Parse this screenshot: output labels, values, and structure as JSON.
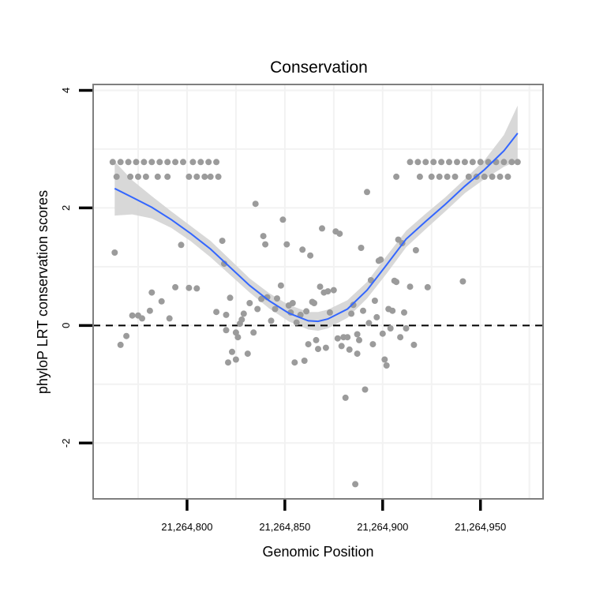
{
  "chart_data": {
    "type": "scatter",
    "title": "Conservation",
    "xlabel": "Genomic Position",
    "ylabel": "phyloP LRT conservation scores",
    "xlim": [
      21264752,
      21264982
    ],
    "ylim": [
      -2.95,
      4.1
    ],
    "x_ticks": [
      {
        "value": 21264800,
        "label": "21,264,800"
      },
      {
        "value": 21264850,
        "label": "21,264,850"
      },
      {
        "value": 21264900,
        "label": "21,264,900"
      },
      {
        "value": 21264950,
        "label": "21,264,950"
      }
    ],
    "y_ticks": [
      {
        "value": -2,
        "label": "-2"
      },
      {
        "value": 0,
        "label": "0"
      },
      {
        "value": 2,
        "label": "2"
      },
      {
        "value": 4,
        "label": "4"
      }
    ],
    "reference_line": {
      "y": 0,
      "style": "dashed"
    },
    "grid": true,
    "colors": {
      "points": "#9b9b9b",
      "smooth": "#3366ff",
      "ribbon": "#d4d4d4",
      "panel_border": "#7f7f7f",
      "grid": "#f2f2f2",
      "refline": "#000000"
    },
    "points": [
      {
        "x": 21264762,
        "y": 2.78
      },
      {
        "x": 21264766,
        "y": 2.78
      },
      {
        "x": 21264770,
        "y": 2.78
      },
      {
        "x": 21264774,
        "y": 2.78
      },
      {
        "x": 21264778,
        "y": 2.78
      },
      {
        "x": 21264782,
        "y": 2.78
      },
      {
        "x": 21264786,
        "y": 2.78
      },
      {
        "x": 21264790,
        "y": 2.78
      },
      {
        "x": 21264794,
        "y": 2.78
      },
      {
        "x": 21264798,
        "y": 2.78
      },
      {
        "x": 21264803,
        "y": 2.78
      },
      {
        "x": 21264807,
        "y": 2.78
      },
      {
        "x": 21264811,
        "y": 2.78
      },
      {
        "x": 21264815,
        "y": 2.78
      },
      {
        "x": 21264764,
        "y": 2.53
      },
      {
        "x": 21264771,
        "y": 2.53
      },
      {
        "x": 21264775,
        "y": 2.53
      },
      {
        "x": 21264779,
        "y": 2.53
      },
      {
        "x": 21264785,
        "y": 2.53
      },
      {
        "x": 21264790,
        "y": 2.53
      },
      {
        "x": 21264801,
        "y": 2.53
      },
      {
        "x": 21264805,
        "y": 2.53
      },
      {
        "x": 21264809,
        "y": 2.53
      },
      {
        "x": 21264812,
        "y": 2.53
      },
      {
        "x": 21264816,
        "y": 2.53
      },
      {
        "x": 21264763,
        "y": 1.24
      },
      {
        "x": 21264766,
        "y": -0.33
      },
      {
        "x": 21264769,
        "y": -0.18
      },
      {
        "x": 21264772,
        "y": 0.17
      },
      {
        "x": 21264775,
        "y": 0.17
      },
      {
        "x": 21264777,
        "y": 0.12
      },
      {
        "x": 21264781,
        "y": 0.25
      },
      {
        "x": 21264782,
        "y": 0.56
      },
      {
        "x": 21264787,
        "y": 0.41
      },
      {
        "x": 21264791,
        "y": 0.12
      },
      {
        "x": 21264794,
        "y": 0.65
      },
      {
        "x": 21264797,
        "y": 1.37
      },
      {
        "x": 21264801,
        "y": 0.64
      },
      {
        "x": 21264805,
        "y": 0.63
      },
      {
        "x": 21264815,
        "y": 0.23
      },
      {
        "x": 21264818,
        "y": 1.44
      },
      {
        "x": 21264819,
        "y": 1.05
      },
      {
        "x": 21264820,
        "y": -0.08
      },
      {
        "x": 21264820,
        "y": 0.18
      },
      {
        "x": 21264821,
        "y": -0.63
      },
      {
        "x": 21264822,
        "y": 0.47
      },
      {
        "x": 21264823,
        "y": -0.45
      },
      {
        "x": 21264825,
        "y": -0.12
      },
      {
        "x": 21264826,
        "y": -0.2
      },
      {
        "x": 21264825,
        "y": -0.58
      },
      {
        "x": 21264827,
        "y": 0.03
      },
      {
        "x": 21264828,
        "y": 0.1
      },
      {
        "x": 21264829,
        "y": 0.2
      },
      {
        "x": 21264831,
        "y": -0.48
      },
      {
        "x": 21264832,
        "y": 0.38
      },
      {
        "x": 21264835,
        "y": 2.07
      },
      {
        "x": 21264834,
        "y": -0.12
      },
      {
        "x": 21264836,
        "y": 0.28
      },
      {
        "x": 21264838,
        "y": 0.45
      },
      {
        "x": 21264839,
        "y": 1.52
      },
      {
        "x": 21264840,
        "y": 1.38
      },
      {
        "x": 21264841,
        "y": 0.48
      },
      {
        "x": 21264843,
        "y": 0.08
      },
      {
        "x": 21264845,
        "y": 0.28
      },
      {
        "x": 21264846,
        "y": 0.46
      },
      {
        "x": 21264848,
        "y": 0.68
      },
      {
        "x": 21264849,
        "y": 1.8
      },
      {
        "x": 21264851,
        "y": 1.38
      },
      {
        "x": 21264852,
        "y": 0.34
      },
      {
        "x": 21264853,
        "y": 0.22
      },
      {
        "x": 21264854,
        "y": 0.38
      },
      {
        "x": 21264855,
        "y": -0.63
      },
      {
        "x": 21264856,
        "y": 0.05
      },
      {
        "x": 21264858,
        "y": 0.18
      },
      {
        "x": 21264859,
        "y": 1.29
      },
      {
        "x": 21264860,
        "y": -0.6
      },
      {
        "x": 21264861,
        "y": 0.24
      },
      {
        "x": 21264862,
        "y": -0.32
      },
      {
        "x": 21264863,
        "y": 1.19
      },
      {
        "x": 21264864,
        "y": 0.4
      },
      {
        "x": 21264865,
        "y": 0.38
      },
      {
        "x": 21264866,
        "y": -0.25
      },
      {
        "x": 21264867,
        "y": -0.4
      },
      {
        "x": 21264868,
        "y": 0.66
      },
      {
        "x": 21264869,
        "y": 1.65
      },
      {
        "x": 21264870,
        "y": 0.56
      },
      {
        "x": 21264871,
        "y": -0.38
      },
      {
        "x": 21264872,
        "y": 0.58
      },
      {
        "x": 21264873,
        "y": 0.22
      },
      {
        "x": 21264875,
        "y": 0.6
      },
      {
        "x": 21264876,
        "y": 1.6
      },
      {
        "x": 21264877,
        "y": -0.22
      },
      {
        "x": 21264878,
        "y": 1.56
      },
      {
        "x": 21264879,
        "y": -0.35
      },
      {
        "x": 21264880,
        "y": -0.2
      },
      {
        "x": 21264881,
        "y": -1.23
      },
      {
        "x": 21264882,
        "y": -0.2
      },
      {
        "x": 21264883,
        "y": -0.41
      },
      {
        "x": 21264884,
        "y": 0.2
      },
      {
        "x": 21264885,
        "y": 0.35
      },
      {
        "x": 21264886,
        "y": -2.7
      },
      {
        "x": 21264887,
        "y": -0.48
      },
      {
        "x": 21264887,
        "y": -0.15
      },
      {
        "x": 21264888,
        "y": -0.25
      },
      {
        "x": 21264889,
        "y": 1.32
      },
      {
        "x": 21264890,
        "y": 0.25
      },
      {
        "x": 21264891,
        "y": -1.09
      },
      {
        "x": 21264892,
        "y": 2.27
      },
      {
        "x": 21264893,
        "y": 0.04
      },
      {
        "x": 21264894,
        "y": 0.77
      },
      {
        "x": 21264895,
        "y": -0.32
      },
      {
        "x": 21264896,
        "y": 0.42
      },
      {
        "x": 21264897,
        "y": 0.14
      },
      {
        "x": 21264898,
        "y": 1.1
      },
      {
        "x": 21264899,
        "y": 1.12
      },
      {
        "x": 21264900,
        "y": -0.14
      },
      {
        "x": 21264901,
        "y": -0.58
      },
      {
        "x": 21264902,
        "y": -0.68
      },
      {
        "x": 21264903,
        "y": 0.28
      },
      {
        "x": 21264904,
        "y": -0.05
      },
      {
        "x": 21264905,
        "y": 0.25
      },
      {
        "x": 21264906,
        "y": 0.76
      },
      {
        "x": 21264907,
        "y": 0.74
      },
      {
        "x": 21264908,
        "y": 1.46
      },
      {
        "x": 21264909,
        "y": -0.2
      },
      {
        "x": 21264910,
        "y": 1.4
      },
      {
        "x": 21264911,
        "y": 0.22
      },
      {
        "x": 21264912,
        "y": -0.05
      },
      {
        "x": 21264914,
        "y": 0.66
      },
      {
        "x": 21264916,
        "y": -0.33
      },
      {
        "x": 21264917,
        "y": 1.28
      },
      {
        "x": 21264907,
        "y": 2.53
      },
      {
        "x": 21264914,
        "y": 2.78
      },
      {
        "x": 21264918,
        "y": 2.78
      },
      {
        "x": 21264922,
        "y": 2.78
      },
      {
        "x": 21264926,
        "y": 2.78
      },
      {
        "x": 21264930,
        "y": 2.78
      },
      {
        "x": 21264934,
        "y": 2.78
      },
      {
        "x": 21264938,
        "y": 2.78
      },
      {
        "x": 21264942,
        "y": 2.78
      },
      {
        "x": 21264946,
        "y": 2.78
      },
      {
        "x": 21264950,
        "y": 2.78
      },
      {
        "x": 21264954,
        "y": 2.78
      },
      {
        "x": 21264958,
        "y": 2.78
      },
      {
        "x": 21264962,
        "y": 2.78
      },
      {
        "x": 21264966,
        "y": 2.78
      },
      {
        "x": 21264969,
        "y": 2.78
      },
      {
        "x": 21264919,
        "y": 2.53
      },
      {
        "x": 21264925,
        "y": 2.53
      },
      {
        "x": 21264929,
        "y": 2.53
      },
      {
        "x": 21264933,
        "y": 2.53
      },
      {
        "x": 21264937,
        "y": 2.53
      },
      {
        "x": 21264944,
        "y": 2.53
      },
      {
        "x": 21264948,
        "y": 2.53
      },
      {
        "x": 21264952,
        "y": 2.53
      },
      {
        "x": 21264956,
        "y": 2.53
      },
      {
        "x": 21264960,
        "y": 2.53
      },
      {
        "x": 21264964,
        "y": 2.53
      },
      {
        "x": 21264923,
        "y": 0.65
      },
      {
        "x": 21264941,
        "y": 0.75
      }
    ],
    "smooth": {
      "x": [
        21264763,
        21264772,
        21264782,
        21264792,
        21264802,
        21264812,
        21264822,
        21264832,
        21264842,
        21264852,
        21264862,
        21264867,
        21264872,
        21264882,
        21264892,
        21264902,
        21264912,
        21264922,
        21264932,
        21264942,
        21264952,
        21264962,
        21264969
      ],
      "y": [
        2.33,
        2.18,
        2.01,
        1.8,
        1.56,
        1.3,
        0.99,
        0.68,
        0.42,
        0.21,
        0.08,
        0.07,
        0.11,
        0.28,
        0.6,
        1.03,
        1.47,
        1.77,
        2.06,
        2.37,
        2.65,
        2.97,
        3.27
      ],
      "lower": [
        1.87,
        1.89,
        1.82,
        1.66,
        1.43,
        1.16,
        0.86,
        0.56,
        0.29,
        0.07,
        -0.07,
        -0.09,
        -0.05,
        0.13,
        0.46,
        0.88,
        1.33,
        1.64,
        1.94,
        2.25,
        2.49,
        2.7,
        2.8
      ],
      "upper": [
        2.79,
        2.47,
        2.2,
        1.94,
        1.69,
        1.44,
        1.12,
        0.8,
        0.55,
        0.35,
        0.23,
        0.23,
        0.27,
        0.43,
        0.74,
        1.18,
        1.61,
        1.9,
        2.18,
        2.49,
        2.81,
        3.24,
        3.74
      ]
    }
  }
}
